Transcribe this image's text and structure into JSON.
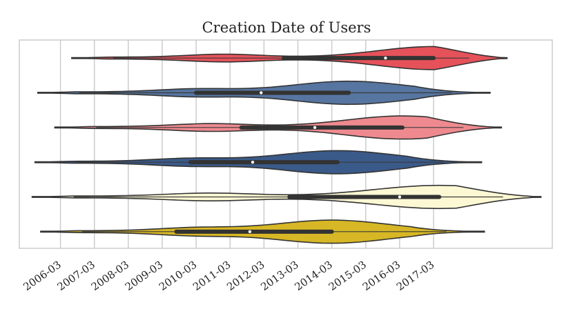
{
  "chart_data": {
    "type": "violin",
    "title": "Creation Date of Users",
    "xlabel": "",
    "ylabel": "",
    "x_tick_labels": [
      "2006-03",
      "2007-03",
      "2008-03",
      "2009-03",
      "2010-03",
      "2011-03",
      "2012-03",
      "2013-03",
      "2014-03",
      "2015-03",
      "2016-03",
      "2017-03"
    ],
    "xlim": [
      "2005-05",
      "2020-05"
    ],
    "grid": true,
    "orientation": "horizontal",
    "series": [
      {
        "color": "#e5525a",
        "min": "2006-07",
        "q1": "2012-10",
        "median": "2015-10",
        "q3": "2017-03",
        "max": "2019-05"
      },
      {
        "color": "#5675a0",
        "min": "2005-07",
        "q1": "2010-03",
        "median": "2012-02",
        "q3": "2014-09",
        "max": "2018-11"
      },
      {
        "color": "#ee8a8f",
        "min": "2006-01",
        "q1": "2011-07",
        "median": "2013-09",
        "q3": "2016-04",
        "max": "2019-03"
      },
      {
        "color": "#3a5a89",
        "min": "2005-06",
        "q1": "2010-01",
        "median": "2011-11",
        "q3": "2014-05",
        "max": "2018-08"
      },
      {
        "color": "#fcf8d3",
        "min": "2005-05",
        "q1": "2013-00",
        "median": "2016-03",
        "q3": "2017-05",
        "max": "2020-05"
      },
      {
        "color": "#d7b725",
        "min": "2005-08",
        "q1": "2009-08",
        "median": "2011-10",
        "q3": "2014-03",
        "max": "2018-09"
      }
    ]
  }
}
